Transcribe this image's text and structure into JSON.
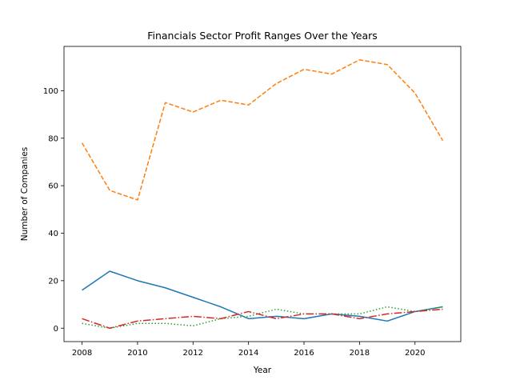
{
  "chart_data": {
    "type": "line",
    "title": "Financials Sector Profit Ranges Over the Years",
    "xlabel": "Year",
    "ylabel": "Number of Companies",
    "xlim": [
      2007.35,
      2021.65
    ],
    "ylim": [
      -5.65,
      118.65
    ],
    "xticks": [
      2008,
      2010,
      2012,
      2014,
      2016,
      2018,
      2020
    ],
    "yticks": [
      0,
      20,
      40,
      60,
      80,
      100
    ],
    "grid": false,
    "x": [
      2008,
      2009,
      2010,
      2011,
      2012,
      2013,
      2014,
      2015,
      2016,
      2017,
      2018,
      2019,
      2020,
      2021
    ],
    "series": [
      {
        "values": [
          16,
          24,
          20,
          17,
          13,
          9,
          4,
          5,
          4,
          6,
          5,
          3,
          7,
          9
        ],
        "color": "#1f77b4",
        "dash": "solid"
      },
      {
        "values": [
          78,
          58,
          54,
          95,
          91,
          96,
          94,
          103,
          109,
          107,
          113,
          111,
          99,
          79
        ],
        "color": "#ff7f0e",
        "dash": "dashed"
      },
      {
        "values": [
          2,
          0,
          2,
          2,
          1,
          4,
          5,
          8,
          6,
          6,
          6,
          9,
          7,
          9
        ],
        "color": "#2ca02c",
        "dash": "dotted"
      },
      {
        "values": [
          4,
          0,
          3,
          4,
          5,
          4,
          7,
          4,
          6,
          6,
          4,
          6,
          7,
          8
        ],
        "color": "#d62728",
        "dash": "dashdot"
      }
    ]
  }
}
